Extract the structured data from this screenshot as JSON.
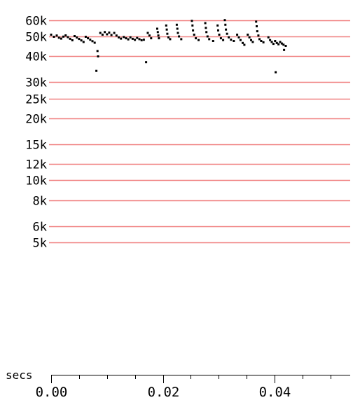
{
  "chart_data": {
    "type": "scatter",
    "title": "",
    "xlabel": "secs",
    "ylabel": "",
    "y_scale": "log",
    "xlim": [
      0.0,
      0.054
    ],
    "ylim": [
      4300,
      61000
    ],
    "grid": true,
    "grid_color": "#f08080",
    "point_color": "#000000",
    "y_ticks": [
      {
        "value": 60000,
        "label": "60k"
      },
      {
        "value": 50000,
        "label": "50k"
      },
      {
        "value": 40000,
        "label": "40k"
      },
      {
        "value": 30000,
        "label": "30k"
      },
      {
        "value": 25000,
        "label": "25k"
      },
      {
        "value": 20000,
        "label": "20k"
      },
      {
        "value": 15000,
        "label": "15k"
      },
      {
        "value": 12000,
        "label": "12k"
      },
      {
        "value": 10000,
        "label": "10k"
      },
      {
        "value": 8000,
        "label": "8k"
      },
      {
        "value": 6000,
        "label": "6k"
      },
      {
        "value": 5000,
        "label": "5k"
      }
    ],
    "x_ticks_major": [
      {
        "value": 0.0,
        "label": "0.00"
      },
      {
        "value": 0.02,
        "label": "0.02"
      },
      {
        "value": 0.04,
        "label": "0.04"
      }
    ],
    "x_ticks_minor": [
      0.005,
      0.01,
      0.015,
      0.025,
      0.03,
      0.035,
      0.045,
      0.05
    ],
    "series": [
      {
        "points": [
          [
            0.0,
            51000
          ],
          [
            0.0005,
            49800
          ],
          [
            0.001,
            50500
          ],
          [
            0.0014,
            49300
          ],
          [
            0.0018,
            48800
          ],
          [
            0.0022,
            49900
          ],
          [
            0.0026,
            50600
          ],
          [
            0.003,
            49600
          ],
          [
            0.0034,
            48700
          ],
          [
            0.0038,
            47900
          ],
          [
            0.0042,
            50200
          ],
          [
            0.0046,
            49400
          ],
          [
            0.005,
            48600
          ],
          [
            0.0054,
            47800
          ],
          [
            0.0058,
            47000
          ],
          [
            0.0062,
            49800
          ],
          [
            0.0066,
            49000
          ],
          [
            0.007,
            48200
          ],
          [
            0.0074,
            47400
          ],
          [
            0.0078,
            46600
          ],
          [
            0.0083,
            42500
          ],
          [
            0.0084,
            40000
          ],
          [
            0.0081,
            34000
          ],
          [
            0.0088,
            52000
          ],
          [
            0.0092,
            51000
          ],
          [
            0.0096,
            52500
          ],
          [
            0.01,
            51200
          ],
          [
            0.0104,
            52200
          ],
          [
            0.0108,
            50800
          ],
          [
            0.0113,
            52000
          ],
          [
            0.0117,
            50500
          ],
          [
            0.0121,
            49500
          ],
          [
            0.0125,
            48800
          ],
          [
            0.013,
            49700
          ],
          [
            0.0134,
            49000
          ],
          [
            0.0138,
            48400
          ],
          [
            0.0142,
            49500
          ],
          [
            0.0146,
            48700
          ],
          [
            0.015,
            48100
          ],
          [
            0.0154,
            49200
          ],
          [
            0.0158,
            48500
          ],
          [
            0.0162,
            47900
          ],
          [
            0.0166,
            48200
          ],
          [
            0.017,
            37500
          ],
          [
            0.0173,
            52000
          ],
          [
            0.0176,
            50500
          ],
          [
            0.0179,
            49000
          ],
          [
            0.019,
            54500
          ],
          [
            0.0191,
            52500
          ],
          [
            0.0192,
            50500
          ],
          [
            0.0193,
            49000
          ],
          [
            0.0206,
            56500
          ],
          [
            0.0207,
            54000
          ],
          [
            0.0208,
            51500
          ],
          [
            0.021,
            49500
          ],
          [
            0.0213,
            48500
          ],
          [
            0.0225,
            57000
          ],
          [
            0.0226,
            54500
          ],
          [
            0.0227,
            52000
          ],
          [
            0.0229,
            50000
          ],
          [
            0.0233,
            48500
          ],
          [
            0.0252,
            59500
          ],
          [
            0.0253,
            56500
          ],
          [
            0.0254,
            53500
          ],
          [
            0.0256,
            51000
          ],
          [
            0.0259,
            49000
          ],
          [
            0.0264,
            48000
          ],
          [
            0.0276,
            58000
          ],
          [
            0.0277,
            55000
          ],
          [
            0.0278,
            52500
          ],
          [
            0.028,
            50000
          ],
          [
            0.0283,
            48500
          ],
          [
            0.029,
            47500
          ],
          [
            0.0298,
            56500
          ],
          [
            0.0299,
            53500
          ],
          [
            0.0301,
            51000
          ],
          [
            0.0304,
            49000
          ],
          [
            0.0308,
            48000
          ],
          [
            0.0311,
            60000
          ],
          [
            0.0312,
            57000
          ],
          [
            0.0313,
            54000
          ],
          [
            0.0315,
            51500
          ],
          [
            0.0318,
            49500
          ],
          [
            0.0322,
            48200
          ],
          [
            0.0327,
            47500
          ],
          [
            0.0333,
            51000
          ],
          [
            0.0336,
            49500
          ],
          [
            0.0339,
            48000
          ],
          [
            0.0343,
            46500
          ],
          [
            0.0346,
            45500
          ],
          [
            0.0352,
            51000
          ],
          [
            0.0355,
            49500
          ],
          [
            0.0358,
            48000
          ],
          [
            0.0361,
            47000
          ],
          [
            0.0367,
            59000
          ],
          [
            0.0368,
            56000
          ],
          [
            0.0369,
            53000
          ],
          [
            0.0371,
            50500
          ],
          [
            0.0373,
            48500
          ],
          [
            0.0376,
            47500
          ],
          [
            0.038,
            46800
          ],
          [
            0.0389,
            49500
          ],
          [
            0.0392,
            48000
          ],
          [
            0.0395,
            47000
          ],
          [
            0.0398,
            46000
          ],
          [
            0.0401,
            47500
          ],
          [
            0.0404,
            46500
          ],
          [
            0.0407,
            45800
          ],
          [
            0.0402,
            33500
          ],
          [
            0.041,
            47000
          ],
          [
            0.0413,
            46200
          ],
          [
            0.0416,
            45600
          ],
          [
            0.042,
            45000
          ],
          [
            0.0417,
            43000
          ]
        ]
      }
    ]
  }
}
